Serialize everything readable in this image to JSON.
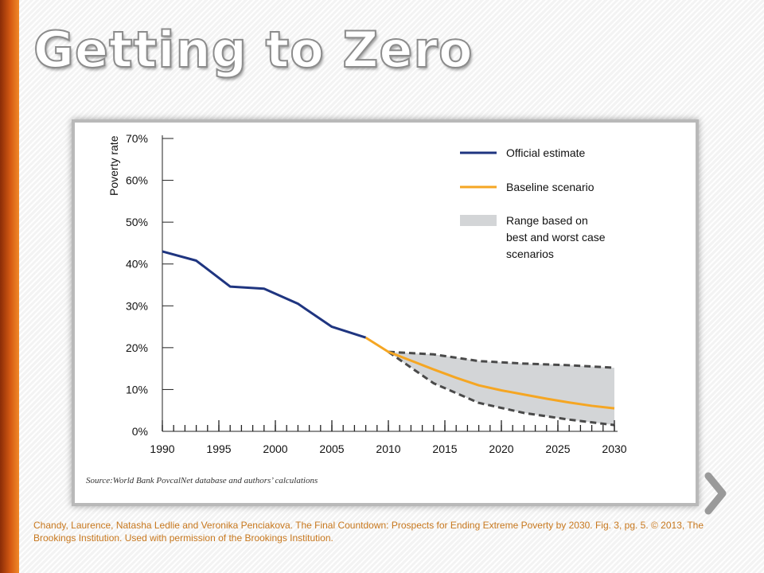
{
  "slide": {
    "title": "Getting to Zero",
    "citation": "Chandy, Laurence, Natasha Ledlie and Veronika Penciakova. The Final Countdown: Prospects for Ending Extreme Poverty by 2030. Fig. 3, pg. 5. © 2013,  The Brookings Institution. Used with permission of the Brookings Institution."
  },
  "colors": {
    "accent": "#d65a12",
    "official": "#1f3580",
    "baseline": "#f5a623",
    "range_fill": "#d3d5d7",
    "range_border": "#4a4a4a"
  },
  "chart_data": {
    "type": "line",
    "ylabel": "Poverty rate",
    "xlabel": "",
    "xlim": [
      1990,
      2030
    ],
    "ylim": [
      0,
      70
    ],
    "x_ticks": [
      "1990",
      "1995",
      "2000",
      "2005",
      "2010",
      "2015",
      "2020",
      "2025",
      "2030"
    ],
    "y_ticks": [
      "0%",
      "10%",
      "20%",
      "30%",
      "40%",
      "50%",
      "60%",
      "70%"
    ],
    "legend_position": "top-right",
    "series": [
      {
        "name": "Official estimate",
        "x": [
          1990,
          1993,
          1996,
          1999,
          2002,
          2005,
          2008
        ],
        "y": [
          43,
          40.8,
          34.6,
          34.1,
          30.5,
          25,
          22.4
        ]
      },
      {
        "name": "Baseline scenario",
        "x": [
          2008,
          2010,
          2012,
          2014,
          2016,
          2018,
          2020,
          2022,
          2024,
          2026,
          2028,
          2030
        ],
        "y": [
          22.4,
          19,
          16.9,
          14.8,
          12.8,
          11,
          9.8,
          8.8,
          7.8,
          6.9,
          6.1,
          5.5
        ]
      }
    ],
    "range": {
      "name": "Range based on\nbest and worst case\nscenarios",
      "x": [
        2010,
        2014,
        2018,
        2022,
        2026,
        2030
      ],
      "upper": [
        19,
        18.4,
        16.8,
        16.2,
        15.8,
        15.2
      ],
      "lower": [
        19,
        11.5,
        6.8,
        4.4,
        2.8,
        1.5
      ]
    },
    "source": "Source:World Bank PovcalNet database and authors’ calculations"
  }
}
